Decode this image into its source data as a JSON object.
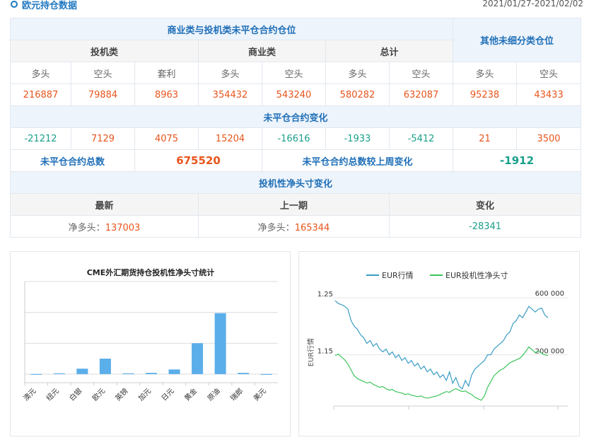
{
  "header": {
    "title": "欧元持仓数据",
    "date_range": "2021/01/27-2021/02/02"
  },
  "table": {
    "section_open_interest": "商业类与投机类未平仓合约仓位",
    "section_other": "其他未细分类仓位",
    "group_spec": "投机类",
    "group_comm": "商业类",
    "group_total": "总计",
    "col_long": "多头",
    "col_short": "空头",
    "col_spread": "套利",
    "positions": [
      "216887",
      "79884",
      "8963",
      "354432",
      "543240",
      "580282",
      "632087",
      "95238",
      "43433"
    ],
    "section_change": "未平仓合约变化",
    "changes": [
      "-21212",
      "7129",
      "4075",
      "15204",
      "-16616",
      "-1933",
      "-5412",
      "21",
      "3500"
    ],
    "total_oi_label": "未平仓合约总数",
    "total_oi_value": "675520",
    "total_oi_change_label": "未平仓合约总数较上周变化",
    "total_oi_change_value": "-1912",
    "section_net": "投机性净头寸变化",
    "net_latest_label": "最新",
    "net_prev_label": "上一期",
    "net_change_label": "变化",
    "net_long_prefix": "净多头：",
    "net_latest_value": "137003",
    "net_prev_value": "165344",
    "net_change_value": "-28341",
    "colors": {
      "red": "#e8551c",
      "green": "#19a08a",
      "blue": "#1f6fb8"
    }
  },
  "chart_data": [
    {
      "type": "bar",
      "title": "CME外汇期货持仓投机性净头寸统计",
      "categories": [
        "澳元",
        "纽元",
        "白银",
        "欧元",
        "英镑",
        "加元",
        "日元",
        "黄金",
        "原油",
        "瑞郎",
        "美元"
      ],
      "values": [
        0,
        5000,
        35000,
        100000,
        5000,
        8000,
        30000,
        200000,
        395000,
        8000,
        -5000
      ],
      "ylim": [
        -10000,
        600000
      ],
      "color": "#5aaeea",
      "grid": true
    },
    {
      "type": "line",
      "legend": [
        "EUR行情",
        "EUR投机性净头寸"
      ],
      "legend_placement": "top",
      "ylabel_left": "EUR行情",
      "left_ticks": [
        "1.25",
        "1.15"
      ],
      "right_ticks": [
        "600 000",
        "200 000"
      ],
      "ylim_left": [
        1.06,
        1.25
      ],
      "ylim_right": [
        -150000,
        600000
      ],
      "series": [
        {
          "name": "EUR行情",
          "color": "#3a9cc4",
          "values": [
            1.245,
            1.24,
            1.238,
            1.235,
            1.23,
            1.21,
            1.2,
            1.195,
            1.185,
            1.18,
            1.17,
            1.175,
            1.165,
            1.17,
            1.16,
            1.155,
            1.16,
            1.15,
            1.155,
            1.145,
            1.15,
            1.14,
            1.145,
            1.135,
            1.14,
            1.13,
            1.135,
            1.125,
            1.13,
            1.12,
            1.125,
            1.115,
            1.12,
            1.11,
            1.115,
            1.105,
            1.12,
            1.1,
            1.11,
            1.095,
            1.09,
            1.105,
            1.095,
            1.115,
            1.125,
            1.13,
            1.135,
            1.14,
            1.15,
            1.15,
            1.16,
            1.165,
            1.17,
            1.175,
            1.185,
            1.19,
            1.205,
            1.21,
            1.22,
            1.215,
            1.225,
            1.235,
            1.23,
            1.225,
            1.23,
            1.232,
            1.22,
            1.215
          ]
        },
        {
          "name": "EUR投机性净头寸",
          "color": "#3cc45a",
          "values": [
            200000,
            210000,
            190000,
            170000,
            140000,
            100000,
            60000,
            40000,
            30000,
            20000,
            10000,
            15000,
            0,
            -10000,
            -20000,
            -15000,
            -30000,
            -40000,
            -35000,
            -50000,
            -55000,
            -60000,
            -70000,
            -65000,
            -75000,
            -80000,
            -85000,
            -80000,
            -90000,
            -95000,
            -90000,
            -85000,
            -80000,
            -70000,
            -60000,
            -50000,
            -55000,
            -40000,
            -30000,
            -40000,
            -50000,
            -45000,
            -60000,
            -70000,
            -90000,
            -100000,
            -110000,
            -80000,
            -20000,
            20000,
            60000,
            80000,
            100000,
            110000,
            130000,
            150000,
            160000,
            170000,
            180000,
            200000,
            230000,
            260000,
            240000,
            220000,
            230000,
            215000,
            205000,
            200000
          ]
        }
      ]
    }
  ]
}
